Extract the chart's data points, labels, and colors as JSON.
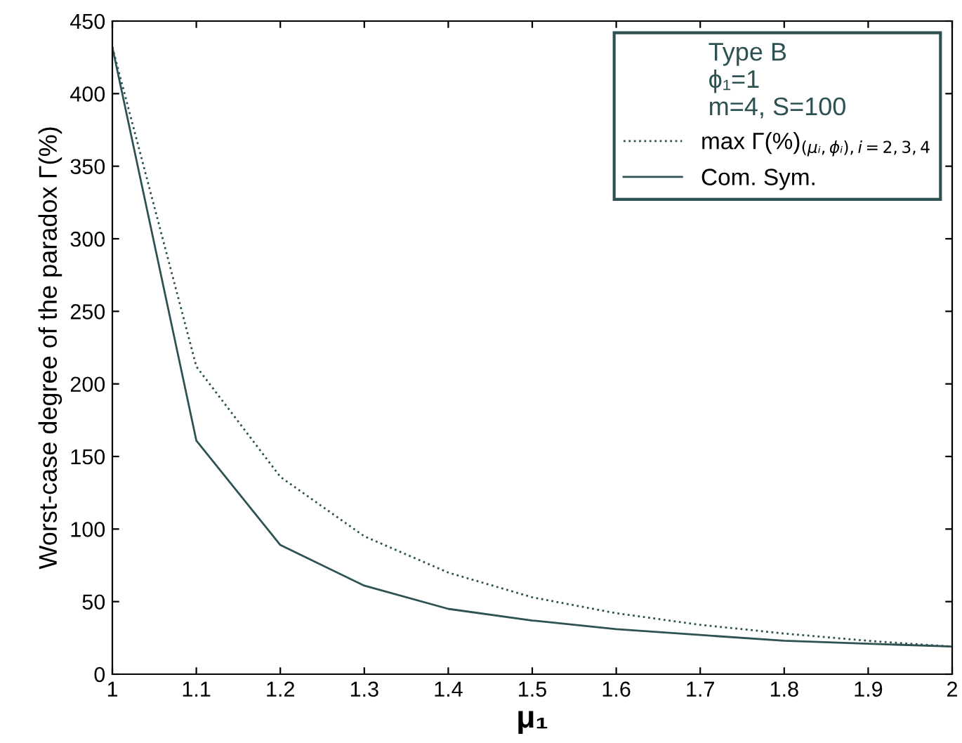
{
  "chart_data": {
    "type": "line",
    "xlabel": "μ₁",
    "ylabel": "Worst-case degree of the paradox Γ(%)",
    "legend_title": "Type B\nϕ₁=1\nm=4, S=100",
    "legend": "top right",
    "grid": false,
    "marker": "none",
    "x": [
      1,
      1.1,
      1.2,
      1.3,
      1.4,
      1.5,
      1.6,
      1.7,
      1.8,
      1.9,
      2
    ],
    "series": [
      {
        "name": "max Γ(%)$_{(μᵢ,ϕᵢ),i=2,3,4}$",
        "color": "#2e5252",
        "line_style": "dotted",
        "values": [
          432,
          212,
          136,
          95,
          70,
          53,
          42,
          34,
          28,
          23,
          19
        ]
      },
      {
        "name": "Com. Sym.",
        "color": "#2e5252",
        "line_style": "solid",
        "values": [
          432,
          161,
          89,
          61,
          45,
          37,
          31,
          27,
          23,
          21,
          19
        ]
      }
    ],
    "xlim": [
      1,
      2
    ],
    "xticks": [
      1,
      1.1,
      1.2,
      1.3,
      1.4,
      1.5,
      1.6,
      1.7,
      1.8,
      1.9,
      2
    ],
    "ylim": [
      0,
      450
    ],
    "yticks": [
      0,
      50,
      100,
      150,
      200,
      250,
      300,
      350,
      400,
      450
    ]
  }
}
